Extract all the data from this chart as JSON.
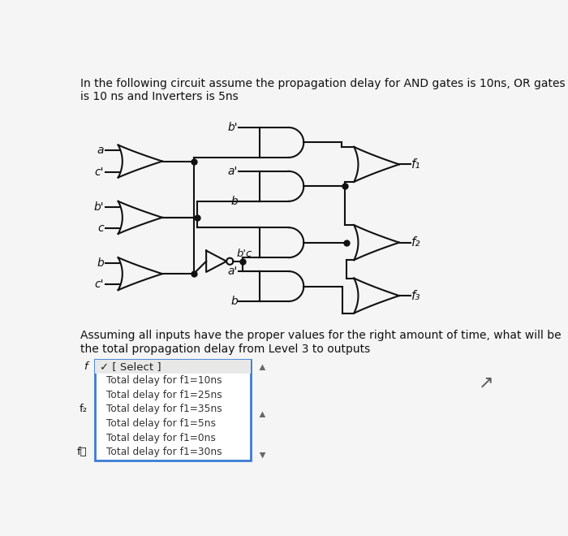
{
  "title_line1": "In the following circuit assume the propagation delay for AND gates is 10ns, OR gates",
  "title_line2": "is 10 ns and Inverters is 5ns",
  "question_line1": "Assuming all inputs have the proper values for the right amount of time, what will be",
  "question_line2": "the total propagation delay from Level 3 to outputs",
  "dropdown_header": "✓ [ Select ]",
  "dropdown_options": [
    "Total delay for f1=10ns",
    "Total delay for f1=25ns",
    "Total delay for f1=35ns",
    "Total delay for f1=5ns",
    "Total delay for f1=0ns",
    "Total delay for f1=30ns"
  ],
  "bg_color": "#f5f5f5",
  "text_color": "#111111",
  "gate_color": "#111111",
  "lw": 1.5
}
